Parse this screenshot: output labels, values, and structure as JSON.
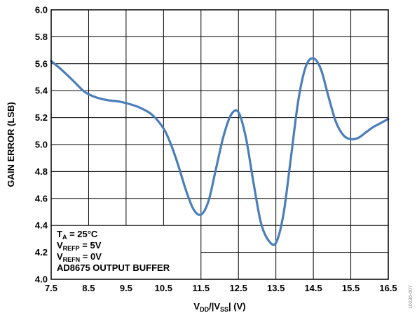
{
  "chart_data": {
    "type": "line",
    "title": "",
    "xlabel": {
      "main": "V",
      "sub1": "DD",
      "mid": "/|V",
      "sub2": "SS",
      "end": "| (V)"
    },
    "ylabel": "GAIN ERROR (LSB)",
    "xlim": [
      7.5,
      16.5
    ],
    "ylim": [
      4.0,
      6.0
    ],
    "x_ticks": [
      "7.5",
      "8.5",
      "9.5",
      "10.5",
      "11.5",
      "12.5",
      "13.5",
      "14.5",
      "15.5",
      "16.5"
    ],
    "y_ticks": [
      "4.0",
      "4.2",
      "4.4",
      "4.6",
      "4.8",
      "5.0",
      "5.2",
      "5.4",
      "5.6",
      "5.8",
      "6.0"
    ],
    "grid": true,
    "series": [
      {
        "color": "#4a7ebb",
        "x": [
          7.5,
          7.8,
          8.1,
          8.4,
          8.7,
          9.0,
          9.3,
          9.6,
          9.9,
          10.2,
          10.5,
          10.7,
          10.9,
          11.1,
          11.3,
          11.5,
          11.7,
          11.9,
          12.1,
          12.3,
          12.5,
          12.7,
          12.9,
          13.1,
          13.3,
          13.5,
          13.7,
          13.9,
          14.1,
          14.3,
          14.5,
          14.7,
          14.9,
          15.1,
          15.3,
          15.5,
          15.7,
          15.9,
          16.1,
          16.3,
          16.5
        ],
        "y": [
          5.62,
          5.55,
          5.47,
          5.39,
          5.35,
          5.33,
          5.32,
          5.3,
          5.27,
          5.22,
          5.12,
          5.0,
          4.84,
          4.66,
          4.52,
          4.48,
          4.58,
          4.82,
          5.06,
          5.22,
          5.24,
          5.05,
          4.72,
          4.42,
          4.29,
          4.27,
          4.48,
          4.9,
          5.33,
          5.58,
          5.64,
          5.56,
          5.36,
          5.17,
          5.07,
          5.04,
          5.05,
          5.09,
          5.13,
          5.16,
          5.19
        ]
      }
    ],
    "legend_box": {
      "lines": [
        {
          "main": "T",
          "sub": "A",
          "rest": " = 25°C"
        },
        {
          "main": "V",
          "sub": "REFP",
          "rest": " = 5V"
        },
        {
          "main": "V",
          "sub": "REFN",
          "rest": " = 0V"
        },
        {
          "main": "AD8675 OUTPUT BUFFER",
          "sub": "",
          "rest": ""
        }
      ]
    },
    "figure_id": "10236-007"
  }
}
